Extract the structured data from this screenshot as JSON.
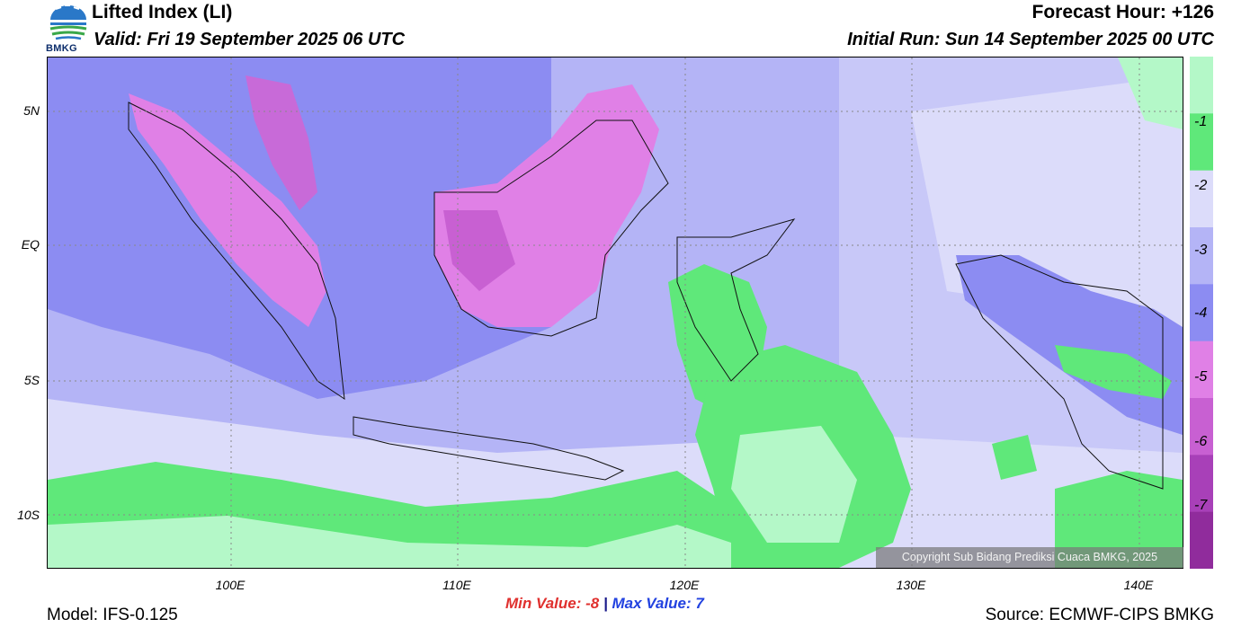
{
  "header": {
    "title": "Lifted Index (LI)",
    "valid": "Valid: Fri 19 September 2025 06 UTC",
    "forecast_hour": "Forecast Hour: +126",
    "initial_run": "Initial Run: Sun 14 September 2025 00 UTC",
    "logo_text": "BMKG"
  },
  "axes": {
    "lat_labels": [
      "5N",
      "EQ",
      "5S",
      "10S"
    ],
    "lon_labels": [
      "100E",
      "110E",
      "120E",
      "130E",
      "140E"
    ]
  },
  "colorbar": {
    "labels": [
      "-1",
      "-2",
      "-3",
      "-4",
      "-5",
      "-6",
      "-7"
    ],
    "colors": [
      "#b4f8c8",
      "#5fe87a",
      "#dcdcfa",
      "#b4b4f6",
      "#8c8cf2",
      "#e080e6",
      "#c860d2",
      "#a840b8",
      "#902c9c"
    ]
  },
  "stats": {
    "min_label": "Min Value:",
    "min_value": "-8",
    "separator": "|",
    "max_label": "Max Value:",
    "max_value": "7"
  },
  "footer": {
    "model": "Model: IFS-0.125",
    "source": "Source: ECMWF-CIPS BMKG",
    "copyright": "Copyright Sub Bidang Prediksi Cuaca BMKG, 2025"
  }
}
